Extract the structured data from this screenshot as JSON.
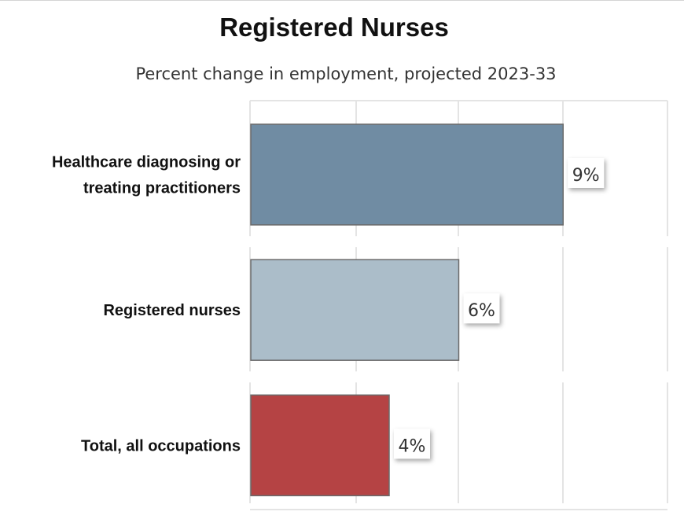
{
  "title": "Registered Nurses",
  "subtitle": "Percent change in employment, projected 2023-33",
  "chart_data": {
    "type": "bar",
    "orientation": "horizontal",
    "title": "Registered Nurses",
    "subtitle": "Percent change in employment, projected 2023-33",
    "categories": [
      [
        "Healthcare diagnosing or",
        "treating practitioners"
      ],
      [
        "Registered nurses"
      ],
      [
        "Total, all occupations"
      ]
    ],
    "values": [
      9,
      6,
      4
    ],
    "value_labels": [
      "9%",
      "6%",
      "4%"
    ],
    "bar_colors": [
      "#708ca3",
      "#abbdc9",
      "#b54344"
    ],
    "xlim": [
      0,
      12
    ],
    "grid": true,
    "legend": "none",
    "xlabel": "",
    "ylabel": ""
  }
}
